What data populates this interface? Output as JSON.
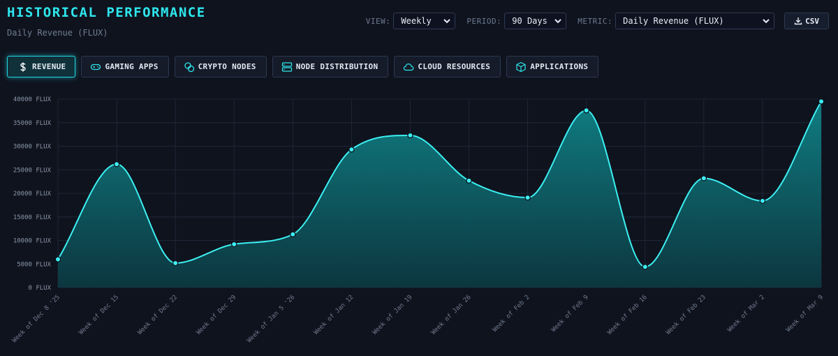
{
  "header": {
    "title": "HISTORICAL PERFORMANCE",
    "subtitle": "Daily Revenue (FLUX)"
  },
  "controls": {
    "view_label": "VIEW:",
    "view_value": "Weekly",
    "period_label": "PERIOD:",
    "period_value": "90 Days",
    "metric_label": "METRIC:",
    "metric_value": "Daily Revenue (FLUX)",
    "csv_label": "CSV"
  },
  "tabs": [
    {
      "label": "REVENUE",
      "icon": "dollar-icon",
      "active": true
    },
    {
      "label": "GAMING APPS",
      "icon": "gamepad-icon",
      "active": false
    },
    {
      "label": "CRYPTO NODES",
      "icon": "coins-icon",
      "active": false
    },
    {
      "label": "NODE DISTRIBUTION",
      "icon": "server-icon",
      "active": false
    },
    {
      "label": "CLOUD RESOURCES",
      "icon": "cloud-icon",
      "active": false
    },
    {
      "label": "APPLICATIONS",
      "icon": "cube-icon",
      "active": false
    }
  ],
  "colors": {
    "accent": "#2ee6ec",
    "line": "#3cf0f2",
    "background": "#0f131e"
  },
  "chart_data": {
    "type": "area",
    "title": "",
    "xlabel": "",
    "ylabel": "",
    "y_unit": "FLUX",
    "ylim": [
      0,
      40000
    ],
    "yticks": [
      0,
      5000,
      10000,
      15000,
      20000,
      25000,
      30000,
      35000,
      40000
    ],
    "grid": true,
    "categories": [
      "Week of Dec 8 '25",
      "Week of Dec 15",
      "Week of Dec 22",
      "Week of Dec 29",
      "Week of Jan 5 '26",
      "Week of Jan 12",
      "Week of Jan 19",
      "Week of Jan 26",
      "Week of Feb 2",
      "Week of Feb 9",
      "Week of Feb 16",
      "Week of Feb 23",
      "Week of Mar 2",
      "Week of Mar 9"
    ],
    "series": [
      {
        "name": "Daily Revenue (FLUX)",
        "values": [
          6000,
          26200,
          5200,
          9200,
          11300,
          29300,
          32300,
          22700,
          19100,
          37600,
          4400,
          23200,
          18400,
          39500
        ]
      }
    ]
  }
}
